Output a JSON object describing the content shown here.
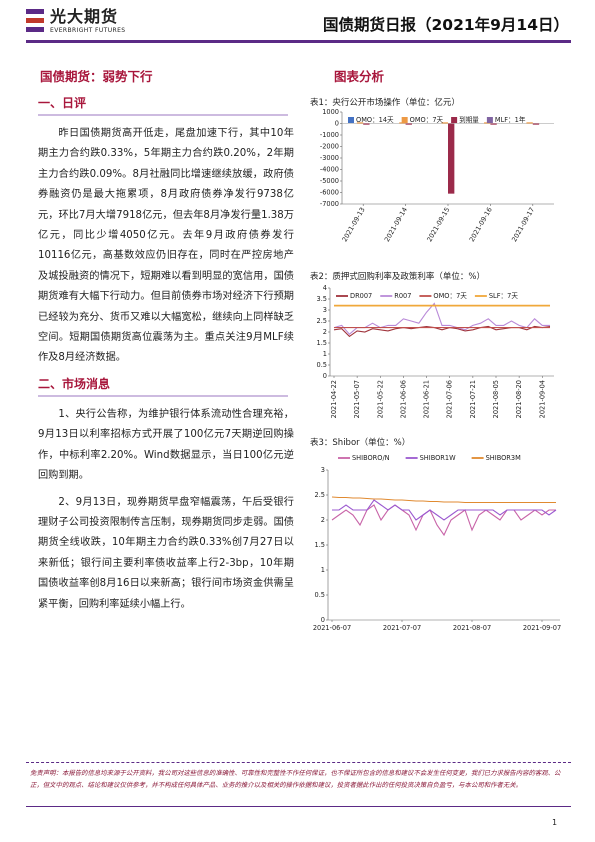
{
  "header": {
    "logo": "光大期货",
    "logo_en": "EVERBRIGHT FUTURES",
    "title": "国债期货日报（2021年9月14日）"
  },
  "article": {
    "title": "国债期货：弱势下行",
    "sections": [
      {
        "heading": "一、日评",
        "paragraphs": [
          "昨日国债期货高开低走，尾盘加速下行，其中10年期主力合约跌0.33%，5年期主力合约跌0.20%，2年期主力合约跌0.09%。8月社融同比增速继续放缓，政府债券融资仍是最大拖累项，8月政府债券净发行9738亿元，环比7月大增7918亿元，但去年8月净发行量1.38万亿元，同比少增4050亿元。去年9月政府债券发行10116亿元，高基数效应仍旧存在，同时在严控房地产及城投融资的情况下，短期难以看到明显的宽信用，国债期货难有大幅下行动力。但目前债券市场对经济下行预期已经较为充分、货币又难以大幅宽松，继续向上同样缺乏空间。短期国债期货高位震荡为主。重点关注9月MLF续作及8月经济数据。"
        ]
      },
      {
        "heading": "二、市场消息",
        "paragraphs": [
          "1、央行公告称，为维护银行体系流动性合理充裕，9月13日以利率招标方式开展了100亿元7天期逆回购操作，中标利率2.20%。Wind数据显示，当日100亿元逆回购到期。",
          "2、9月13日，现券期货早盘窄幅震荡，午后受银行理财子公司投资限制传言压制，现券期货同步走弱。国债期货全线收跌，10年期主力合约跌0.33%创7月27日以来新低；银行间主要利率债收益率上行2-3bp，10年期国债收益率创8月16日以来新高；银行间市场资金供需呈紧平衡，回购利率延续小幅上行。"
        ]
      }
    ]
  },
  "analysis_title": "图表分析",
  "chart_data": [
    {
      "type": "bar",
      "title": "表1：央行公开市场操作（单位：亿元）",
      "categories": [
        "2021-09-13",
        "2021-09-14",
        "2021-09-15",
        "2021-09-16",
        "2021-09-17"
      ],
      "series": [
        {
          "name": "OMO：14天",
          "color": "#4472c4",
          "values": [
            0,
            0,
            0,
            0,
            0
          ]
        },
        {
          "name": "OMO：7天",
          "color": "#ed9a45",
          "values": [
            100,
            100,
            100,
            100,
            100
          ]
        },
        {
          "name": "到期量",
          "color": "#9b2a4a",
          "values": [
            -100,
            -100,
            -6100,
            -100,
            -100
          ]
        },
        {
          "name": "MLF：1年",
          "color": "#8064a2",
          "values": [
            0,
            0,
            0,
            0,
            0
          ]
        }
      ],
      "ylim": [
        -7000,
        1000
      ],
      "yticks": [
        -7000,
        -6000,
        -5000,
        -4000,
        -3000,
        -2000,
        -1000,
        0,
        1000
      ],
      "legend": "top"
    },
    {
      "type": "line",
      "title": "表2：质押式回购利率及政策利率（单位：%）",
      "categories": [
        "2021-04-22",
        null,
        null,
        "2021-05-07",
        null,
        null,
        "2021-05-22",
        null,
        null,
        "2021-06-06",
        null,
        null,
        "2021-06-21",
        null,
        null,
        "2021-07-06",
        null,
        null,
        "2021-07-21",
        null,
        null,
        "2021-08-05",
        null,
        null,
        "2021-08-20",
        null,
        null,
        "2021-09-04",
        null
      ],
      "series": [
        {
          "name": "DR007",
          "color": "#a0343c",
          "values": [
            2.1,
            2.15,
            1.8,
            2.05,
            2.0,
            2.15,
            2.1,
            2.05,
            2.15,
            2.2,
            2.15,
            2.2,
            2.25,
            2.2,
            2.1,
            2.2,
            2.15,
            2.05,
            2.1,
            2.2,
            2.25,
            2.1,
            2.15,
            2.2,
            2.2,
            2.1,
            2.25,
            2.2,
            2.25
          ]
        },
        {
          "name": "R007",
          "color": "#b98ad8",
          "values": [
            2.2,
            2.3,
            1.9,
            2.2,
            2.2,
            2.4,
            2.2,
            2.3,
            2.3,
            2.6,
            2.5,
            2.4,
            2.9,
            3.3,
            2.3,
            2.3,
            2.2,
            2.1,
            2.3,
            2.4,
            2.6,
            2.3,
            2.3,
            2.5,
            2.3,
            2.2,
            2.6,
            2.3,
            2.3
          ]
        },
        {
          "name": "OMO：7天",
          "color": "#c0504d",
          "values": [
            2.2,
            2.2,
            2.2,
            2.2,
            2.2,
            2.2,
            2.2,
            2.2,
            2.2,
            2.2,
            2.2,
            2.2,
            2.2,
            2.2,
            2.2,
            2.2,
            2.2,
            2.2,
            2.2,
            2.2,
            2.2,
            2.2,
            2.2,
            2.2,
            2.2,
            2.2,
            2.2,
            2.2,
            2.2
          ]
        },
        {
          "name": "SLF：7天",
          "color": "#f0a83a",
          "values": [
            3.2,
            3.2,
            3.2,
            3.2,
            3.2,
            3.2,
            3.2,
            3.2,
            3.2,
            3.2,
            3.2,
            3.2,
            3.2,
            3.2,
            3.2,
            3.2,
            3.2,
            3.2,
            3.2,
            3.2,
            3.2,
            3.2,
            3.2,
            3.2,
            3.2,
            3.2,
            3.2,
            3.2,
            3.2
          ]
        }
      ],
      "ylim": [
        0,
        4
      ],
      "yticks": [
        0,
        0.5,
        1,
        1.5,
        2,
        2.5,
        3,
        3.5,
        4
      ],
      "legend": "top"
    },
    {
      "type": "line",
      "title": "表3：Shibor（单位：%）",
      "categories": [
        "2021-06-07",
        null,
        null,
        null,
        null,
        null,
        null,
        null,
        null,
        null,
        "2021-07-07",
        null,
        null,
        null,
        null,
        null,
        null,
        null,
        null,
        null,
        "2021-08-07",
        null,
        null,
        null,
        null,
        null,
        null,
        null,
        null,
        null,
        "2021-09-07",
        null,
        null
      ],
      "series": [
        {
          "name": "SHIBORO/N",
          "color": "#c864a8",
          "values": [
            2.0,
            2.1,
            2.2,
            2.1,
            1.9,
            2.2,
            2.3,
            2.0,
            2.2,
            2.3,
            2.2,
            2.1,
            1.8,
            2.1,
            2.2,
            1.9,
            1.7,
            2.0,
            2.1,
            2.2,
            1.8,
            2.1,
            2.2,
            2.1,
            2.0,
            2.2,
            2.2,
            2.0,
            2.1,
            2.2,
            2.1,
            2.2,
            2.2
          ]
        },
        {
          "name": "SHIBOR1W",
          "color": "#9b59d0",
          "values": [
            2.2,
            2.2,
            2.3,
            2.2,
            2.2,
            2.2,
            2.4,
            2.3,
            2.2,
            2.3,
            2.2,
            2.2,
            2.0,
            2.1,
            2.2,
            2.1,
            2.0,
            2.1,
            2.2,
            2.2,
            2.2,
            2.2,
            2.2,
            2.2,
            2.1,
            2.2,
            2.2,
            2.2,
            2.2,
            2.2,
            2.2,
            2.1,
            2.2
          ]
        },
        {
          "name": "SHIBOR3M",
          "color": "#e08a30",
          "values": [
            2.46,
            2.45,
            2.45,
            2.44,
            2.44,
            2.43,
            2.42,
            2.42,
            2.41,
            2.4,
            2.4,
            2.39,
            2.38,
            2.38,
            2.37,
            2.37,
            2.36,
            2.36,
            2.36,
            2.35,
            2.35,
            2.35,
            2.35,
            2.35,
            2.35,
            2.35,
            2.35,
            2.35,
            2.35,
            2.35,
            2.35,
            2.35,
            2.35
          ]
        }
      ],
      "ylim": [
        0,
        3
      ],
      "yticks": [
        0,
        0.5,
        1,
        1.5,
        2,
        2.5,
        3
      ],
      "legend": "top"
    }
  ],
  "footer": {
    "disclaimer": "免责声明：本报告的信息均来源于公开资料，我公司对这些信息的准确性、可靠性和完整性不作任何保证，也不保证所包含的信息和建议不会发生任何变更，我们已力求报告内容的客观、公正，但文中的观点、结论和建议仅供参考，并不构成任何具体产品、业务的推介以及相关的操作依据和建议，投资者据此作出的任何投资决策自负盈亏，与本公司和作者无关。",
    "page": "1"
  }
}
